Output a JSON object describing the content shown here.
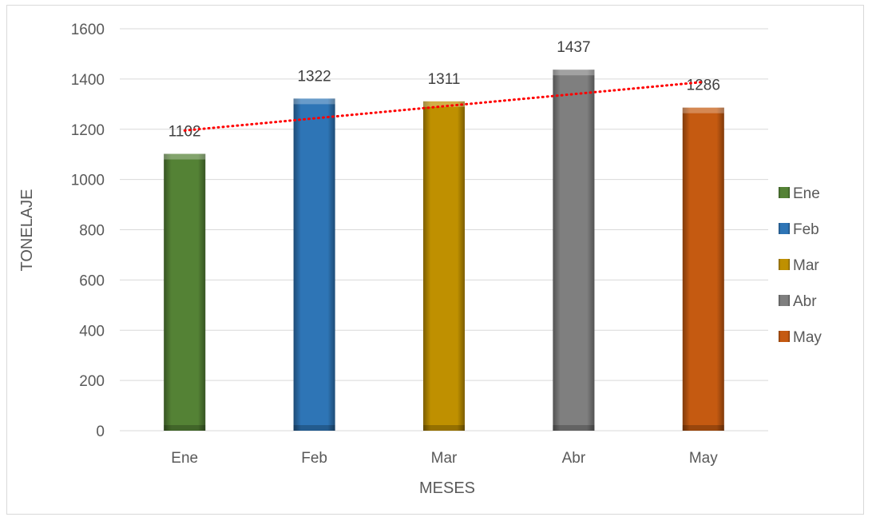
{
  "chart_data": {
    "type": "bar",
    "categories": [
      "Ene",
      "Feb",
      "Mar",
      "Abr",
      "May"
    ],
    "values": [
      1102,
      1322,
      1311,
      1437,
      1286
    ],
    "data_labels": [
      "1102",
      "1322",
      "1311",
      "1437",
      "1286"
    ],
    "colors": [
      "#548235",
      "#2e75b6",
      "#bf9000",
      "#7f7f7f",
      "#c55a11"
    ],
    "xlabel": "MESES",
    "ylabel": "TONELAJE",
    "ylim": [
      0,
      1600
    ],
    "yticks": [
      "0",
      "200",
      "400",
      "600",
      "800",
      "1000",
      "1200",
      "1400",
      "1600"
    ],
    "grid": true,
    "legend": {
      "placement": "right",
      "entries": [
        "Ene",
        "Feb",
        "Mar",
        "Abr",
        "May"
      ]
    },
    "trendline": {
      "type": "linear",
      "color": "#ff0000",
      "style": "dotted"
    }
  }
}
